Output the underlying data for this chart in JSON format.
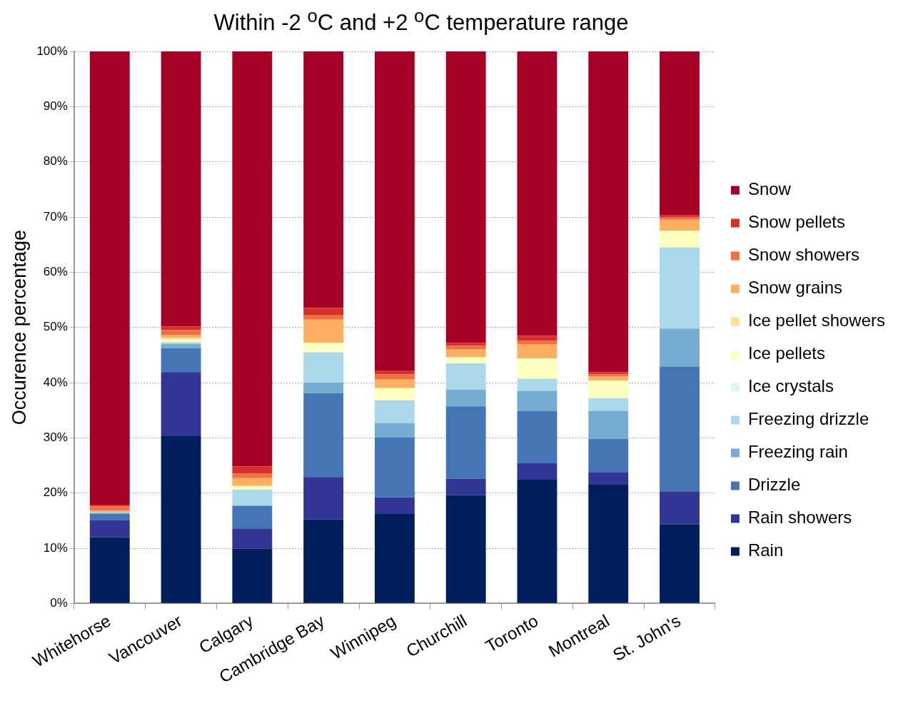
{
  "chart_data": {
    "type": "bar",
    "stacked": true,
    "title": "Within -2 $^{o}$C and +2 $^{o}$C temperature range",
    "ylabel": "Occurence percentage",
    "categories": [
      "Whitehorse",
      "Vancouver",
      "Calgary",
      "Cambridge Bay",
      "Winnipeg",
      "Churchill",
      "Toronto",
      "Montreal",
      "St. John's"
    ],
    "series": [
      {
        "name": "Rain",
        "color": "#001f5c",
        "values": [
          12.0,
          30.3,
          9.9,
          15.2,
          16.2,
          19.6,
          22.4,
          21.5,
          14.3
        ]
      },
      {
        "name": "Rain showers",
        "color": "#313695",
        "values": [
          3.1,
          11.6,
          3.6,
          7.7,
          3.0,
          3.0,
          3.0,
          2.2,
          6.0
        ]
      },
      {
        "name": "Drizzle",
        "color": "#4575b4",
        "values": [
          1.1,
          4.3,
          4.2,
          15.2,
          10.9,
          13.1,
          9.5,
          6.1,
          22.6
        ]
      },
      {
        "name": "Freezing rain",
        "color": "#74add1",
        "values": [
          0.2,
          0.8,
          0,
          1.9,
          2.6,
          3.0,
          3.6,
          5.1,
          6.9
        ]
      },
      {
        "name": "Freezing drizzle",
        "color": "#abd9e9",
        "values": [
          0.2,
          0.3,
          2.9,
          5.5,
          4.1,
          4.8,
          2.2,
          2.3,
          14.7
        ]
      },
      {
        "name": "Ice crystals",
        "color": "#e0f3f8",
        "values": [
          0,
          0,
          0,
          0,
          0,
          0,
          0,
          0,
          0
        ]
      },
      {
        "name": "Ice pellets",
        "color": "#ffffbf",
        "values": [
          null,
          0.6,
          0.7,
          1.7,
          2.2,
          1.1,
          3.7,
          3.2,
          3.0
        ]
      },
      {
        "name": "Ice pellet showers",
        "color": "#fee090",
        "values": [
          0,
          0.2,
          0,
          0,
          0,
          0,
          0,
          0,
          0
        ]
      },
      {
        "name": "Snow grains",
        "color": "#fdae61",
        "values": [
          0.2,
          0.5,
          1.4,
          4.2,
          1.6,
          1.4,
          2.6,
          0.7,
          2.0
        ]
      },
      {
        "name": "Snow showers",
        "color": "#f46d43",
        "values": [
          0.8,
          0.9,
          0.8,
          0.8,
          0.9,
          0.7,
          0.6,
          0.4,
          0.5
        ]
      },
      {
        "name": "Snow pellets",
        "color": "#d73027",
        "values": [
          0.3,
          0.7,
          1.3,
          1.3,
          0.6,
          0.5,
          0.9,
          0.4,
          0.3
        ]
      },
      {
        "name": "Snow",
        "color": "#a50026",
        "values": [
          82.1,
          49.8,
          75.2,
          46.5,
          57.9,
          52.8,
          51.5,
          58.1,
          29.7
        ]
      }
    ],
    "ylim": [
      0,
      100
    ],
    "yticks": [
      {
        "value": 0,
        "label": "0%"
      },
      {
        "value": 10,
        "label": "10%"
      },
      {
        "value": 20,
        "label": "20%"
      },
      {
        "value": 30,
        "label": "30%"
      },
      {
        "value": 40,
        "label": "40%"
      },
      {
        "value": 50,
        "label": "50%"
      },
      {
        "value": 60,
        "label": "60%"
      },
      {
        "value": 70,
        "label": "70%"
      },
      {
        "value": 80,
        "label": "80%"
      },
      {
        "value": 90,
        "label": "90%"
      },
      {
        "value": 100,
        "label": "100%"
      }
    ],
    "grid": "y",
    "legend": "right"
  }
}
